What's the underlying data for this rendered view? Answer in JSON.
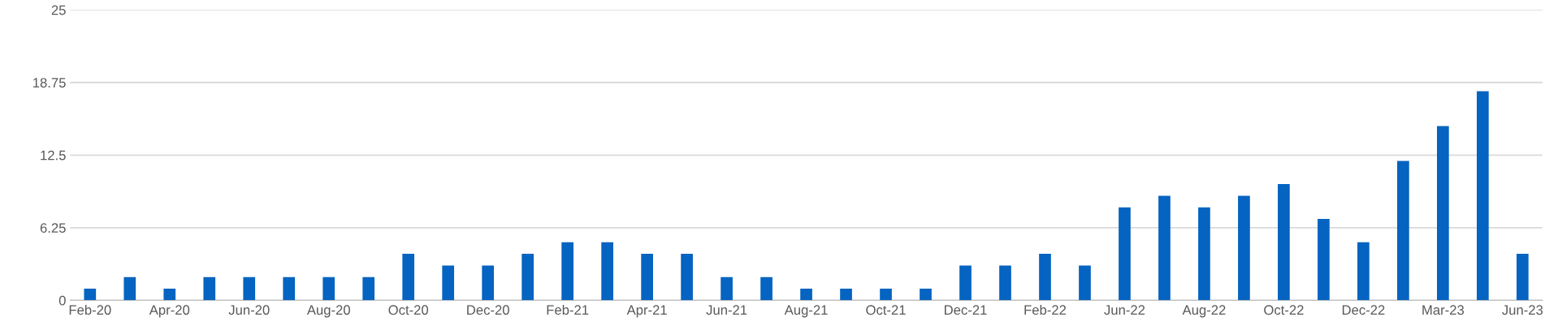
{
  "chart_data": {
    "type": "bar",
    "categories": [
      "Feb-20",
      null,
      "Apr-20",
      null,
      "Jun-20",
      null,
      "Aug-20",
      null,
      "Oct-20",
      null,
      "Dec-20",
      null,
      "Feb-21",
      null,
      "Apr-21",
      null,
      "Jun-21",
      null,
      "Aug-21",
      null,
      "Oct-21",
      null,
      "Dec-21",
      null,
      "Feb-22",
      null,
      "Jun-22",
      null,
      "Aug-22",
      null,
      "Oct-22",
      null,
      "Dec-22",
      null,
      "Mar-23",
      null,
      "Jun-23"
    ],
    "series": [
      {
        "color": "#0563c1",
        "values": [
          1,
          2,
          1,
          2,
          2,
          2,
          2,
          2,
          4,
          3,
          3,
          4,
          5,
          5,
          4,
          4,
          2,
          2,
          1,
          1,
          1,
          1,
          3,
          3,
          4,
          3,
          8,
          9,
          8,
          9,
          10,
          7,
          5,
          12,
          15,
          18,
          4
        ]
      }
    ],
    "ylim": [
      0,
      25
    ],
    "yticks": [
      0,
      6.25,
      12.5,
      18.75,
      25
    ],
    "grid": "y",
    "legend": false
  }
}
